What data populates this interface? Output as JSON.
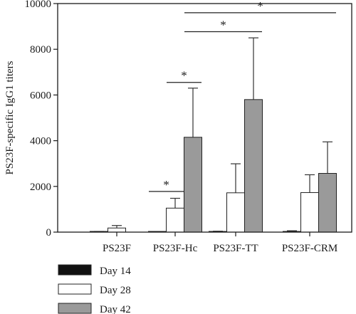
{
  "chart_data": {
    "type": "bar",
    "title": "",
    "ylabel": "PS23F-specific IgG1 titers",
    "xlabel": "",
    "ylim": [
      0,
      10000
    ],
    "yticks": [
      0,
      2000,
      4000,
      6000,
      8000,
      10000
    ],
    "ytick_labels": [
      "0",
      "2000",
      "4000",
      "6000",
      "8000",
      "10000"
    ],
    "categories": [
      "PS23F",
      "PS23F-Hc",
      "PS23F-TT",
      "PS23F-CRM"
    ],
    "series": [
      {
        "name": "Day 14",
        "color": "#111111",
        "values": [
          10,
          10,
          20,
          30
        ],
        "errors": [
          20,
          0,
          20,
          30
        ]
      },
      {
        "name": "Day 28",
        "color": "#ffffff",
        "values": [
          180,
          1050,
          1720,
          1730
        ],
        "errors": [
          110,
          430,
          1270,
          780
        ]
      },
      {
        "name": "Day 42",
        "color": "#9a9a9a",
        "values": [
          0,
          4150,
          5800,
          2570
        ],
        "errors": [
          0,
          2150,
          2700,
          1380
        ]
      }
    ],
    "legend_position": "bottom-left",
    "grid": false,
    "significance": [
      {
        "label": "*",
        "from": "PS23F-Hc Day 28",
        "to": "PS23F-Hc Day 42",
        "y": 6550
      },
      {
        "label": "*",
        "from": "PS23F-Hc Day 14",
        "to": "PS23F-Hc Day 28",
        "y": 1780
      },
      {
        "label": "*",
        "from": "PS23F-Hc Day 42",
        "to": "PS23F-TT Day 42",
        "y": 8770
      },
      {
        "label": "*",
        "from": "PS23F-Hc Day 42",
        "to": "PS23F-CRM Day 42",
        "y": 9600
      }
    ]
  }
}
